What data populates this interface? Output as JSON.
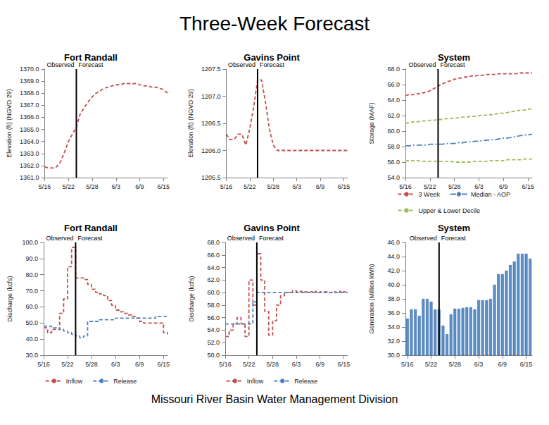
{
  "title": "Three-Week Forecast",
  "footer": "Missouri River Basin Water Management Division",
  "chart_data": [
    {
      "type": "line",
      "title": "Fort Randall",
      "ylabel": "Elevation (ft) (NGVD 29)",
      "categories": [
        "5/16",
        null,
        null,
        null,
        null,
        null,
        "5/22",
        null,
        null,
        null,
        null,
        null,
        "5/28",
        null,
        null,
        null,
        null,
        null,
        "6/3",
        null,
        null,
        null,
        null,
        null,
        "6/9",
        null,
        null,
        null,
        null,
        null,
        "6/15",
        null
      ],
      "values": [
        1361.9,
        1361.8,
        1361.8,
        1361.9,
        1362.3,
        1363.1,
        1364.0,
        1364.6,
        1365.2,
        1366.3,
        1366.8,
        1367.3,
        1367.7,
        1368.0,
        1368.2,
        1368.4,
        1368.5,
        1368.6,
        1368.7,
        1368.7,
        1368.8,
        1368.8,
        1368.8,
        1368.8,
        1368.7,
        1368.6,
        1368.6,
        1368.5,
        1368.5,
        1368.4,
        1368.3,
        1368.0
      ],
      "color": "#c0504d",
      "line_style": "dashed",
      "ylim": [
        1361,
        1370
      ],
      "yticks": [
        {
          "value": 1361,
          "label": "1361.0"
        },
        {
          "value": 1362,
          "label": "1362.0"
        },
        {
          "value": 1363,
          "label": "1363.0"
        },
        {
          "value": 1364,
          "label": "1364.0"
        },
        {
          "value": 1365,
          "label": "1365.0"
        },
        {
          "value": 1366,
          "label": "1366.0"
        },
        {
          "value": 1367,
          "label": "1367.0"
        },
        {
          "value": 1368,
          "label": "1368.0"
        },
        {
          "value": 1369,
          "label": "1369.0"
        },
        {
          "value": 1370,
          "label": "1370.0"
        }
      ],
      "annotations": [
        {
          "text": "Observed",
          "at": 8
        },
        {
          "text": "Forecast",
          "at": 8
        }
      ],
      "grid": false
    },
    {
      "type": "line",
      "title": "Gavins Point",
      "ylabel": "Elevation (ft) (NGVD 29)",
      "categories": [
        "5/16",
        null,
        null,
        null,
        null,
        null,
        "5/22",
        null,
        null,
        null,
        null,
        null,
        "5/28",
        null,
        null,
        null,
        null,
        null,
        "6/3",
        null,
        null,
        null,
        null,
        null,
        "6/9",
        null,
        null,
        null,
        null,
        null,
        "6/15",
        null
      ],
      "values": [
        1206.3,
        1206.2,
        1206.2,
        1206.3,
        1206.3,
        1206.1,
        1206.4,
        1206.8,
        1207.3,
        1207.3,
        1206.9,
        1206.4,
        1206.1,
        1206.0,
        1206.0,
        1206.0,
        1206.0,
        1206.0,
        1206.0,
        1206.0,
        1206.0,
        1206.0,
        1206.0,
        1206.0,
        1206.0,
        1206.0,
        1206.0,
        1206.0,
        1206.0,
        1206.0,
        1206.0,
        1206.0
      ],
      "color": "#c0504d",
      "line_style": "dashed",
      "ylim": [
        1205.5,
        1207.5
      ],
      "yticks": [
        {
          "value": 1205.5,
          "label": "1205.5"
        },
        {
          "value": 1206,
          "label": "1206.0"
        },
        {
          "value": 1206.5,
          "label": "1206.5"
        },
        {
          "value": 1207,
          "label": "1207.0"
        },
        {
          "value": 1207.5,
          "label": "1207.5"
        }
      ],
      "annotations": [
        {
          "text": "Observed",
          "at": 8
        },
        {
          "text": "Forecast",
          "at": 8
        }
      ],
      "grid": false
    },
    {
      "type": "line",
      "title": "System",
      "ylabel": "Storage (MAF)",
      "categories": [
        "5/16",
        null,
        null,
        null,
        null,
        null,
        "5/22",
        null,
        null,
        null,
        null,
        null,
        "5/28",
        null,
        null,
        null,
        null,
        null,
        "6/3",
        null,
        null,
        null,
        null,
        null,
        "6/9",
        null,
        null,
        null,
        null,
        null,
        "6/15",
        null
      ],
      "series": [
        {
          "name": "3 Week",
          "color": "#c0504d",
          "line_style": "dashed",
          "values": [
            64.6,
            64.7,
            64.7,
            64.8,
            64.9,
            65.0,
            65.2,
            65.5,
            65.8,
            66.1,
            66.3,
            66.5,
            66.7,
            66.8,
            66.9,
            67.0,
            67.1,
            67.1,
            67.2,
            67.2,
            67.3,
            67.3,
            67.3,
            67.4,
            67.4,
            67.4,
            67.4,
            67.4,
            67.5,
            67.5,
            67.5,
            67.5
          ]
        },
        {
          "name": "Median - AOP",
          "color": "#4f81bd",
          "line_style": "dashdot",
          "values": [
            58.1,
            58.1,
            58.2,
            58.2,
            58.2,
            58.2,
            58.3,
            58.3,
            58.3,
            58.3,
            58.4,
            58.4,
            58.4,
            58.5,
            58.5,
            58.6,
            58.6,
            58.7,
            58.7,
            58.8,
            58.8,
            58.9,
            58.9,
            59.0,
            59.1,
            59.1,
            59.2,
            59.3,
            59.4,
            59.5,
            59.5,
            59.6
          ]
        },
        {
          "name": "Upper & Lower Decile",
          "color": "#9bbb59",
          "line_style": "dashed",
          "values": [
            61.0,
            61.1,
            61.2,
            61.2,
            61.3,
            61.3,
            61.4,
            61.4,
            61.5,
            61.5,
            61.6,
            61.6,
            61.7,
            61.7,
            61.8,
            61.8,
            61.9,
            61.9,
            62.0,
            62.0,
            62.1,
            62.1,
            62.2,
            62.3,
            62.3,
            62.4,
            62.5,
            62.6,
            62.7,
            62.7,
            62.8,
            62.9
          ]
        },
        {
          "name": "Upper & Lower Decile",
          "color": "#9bbb59",
          "line_style": "dashed",
          "values": [
            56.2,
            56.2,
            56.2,
            56.2,
            56.1,
            56.1,
            56.1,
            56.1,
            56.1,
            56.1,
            56.1,
            56.1,
            56.0,
            56.0,
            56.0,
            56.0,
            56.0,
            56.1,
            56.1,
            56.1,
            56.1,
            56.2,
            56.2,
            56.2,
            56.2,
            56.3,
            56.3,
            56.3,
            56.3,
            56.4,
            56.4,
            56.4
          ]
        }
      ],
      "ylim": [
        54,
        68
      ],
      "yticks": [
        {
          "value": 54,
          "label": "54.0"
        },
        {
          "value": 56,
          "label": "56.0"
        },
        {
          "value": 58,
          "label": "58.0"
        },
        {
          "value": 60,
          "label": "60.0"
        },
        {
          "value": 62,
          "label": "62.0"
        },
        {
          "value": 64,
          "label": "64.0"
        },
        {
          "value": 66,
          "label": "66.0"
        },
        {
          "value": 68,
          "label": "68.0"
        }
      ],
      "annotations": [
        {
          "text": "Observed",
          "at": 8
        },
        {
          "text": "Forecast",
          "at": 8
        }
      ],
      "legend": "bottom",
      "grid": false
    },
    {
      "type": "line",
      "title": "Fort Randall",
      "ylabel": "Discharge (kcfs)",
      "categories": [
        "5/16",
        null,
        null,
        null,
        null,
        null,
        "5/22",
        null,
        null,
        null,
        null,
        null,
        "5/28",
        null,
        null,
        null,
        null,
        null,
        "6/3",
        null,
        null,
        null,
        null,
        null,
        "6/9",
        null,
        null,
        null,
        null,
        null,
        "6/15",
        null
      ],
      "series": [
        {
          "name": "Inflow",
          "color": "#c0504d",
          "line_style": "dashed",
          "type": "step",
          "values": [
            47,
            44,
            46,
            46,
            56,
            65,
            85,
            97,
            78,
            78,
            77,
            74,
            71,
            69,
            68,
            67,
            64,
            61,
            58,
            57,
            56,
            55,
            54,
            53,
            51,
            50,
            50,
            50,
            50,
            50,
            44,
            43
          ]
        },
        {
          "name": "Release",
          "color": "#4f81bd",
          "line_style": "dashed",
          "type": "step",
          "values": [
            48,
            48,
            47,
            47,
            46,
            45,
            44,
            43,
            42,
            41,
            42,
            51,
            51,
            51,
            52,
            52,
            52,
            52,
            53,
            53,
            53,
            53,
            53,
            53,
            53,
            53,
            53,
            53,
            54,
            54,
            54,
            54
          ]
        }
      ],
      "ylim": [
        30,
        100
      ],
      "yticks": [
        {
          "value": 30,
          "label": "30.0"
        },
        {
          "value": 40,
          "label": "40.0"
        },
        {
          "value": 50,
          "label": "50.0"
        },
        {
          "value": 60,
          "label": "60.0"
        },
        {
          "value": 70,
          "label": "70.0"
        },
        {
          "value": 80,
          "label": "80.0"
        },
        {
          "value": 90,
          "label": "90.0"
        },
        {
          "value": 100,
          "label": "100.0"
        }
      ],
      "annotations": [
        {
          "text": "Observed",
          "at": 8
        },
        {
          "text": "Forecast",
          "at": 8
        }
      ],
      "legend": "bottom",
      "grid": false
    },
    {
      "type": "line",
      "title": "Gavins Point",
      "ylabel": "Discharge (kcfs)",
      "categories": [
        "5/16",
        null,
        null,
        null,
        null,
        null,
        "5/22",
        null,
        null,
        null,
        null,
        null,
        "5/28",
        null,
        null,
        null,
        null,
        null,
        "6/3",
        null,
        null,
        null,
        null,
        null,
        "6/9",
        null,
        null,
        null,
        null,
        null,
        "6/15",
        null
      ],
      "series": [
        {
          "name": "Inflow",
          "color": "#c0504d",
          "line_style": "dashed",
          "type": "step",
          "values": [
            53,
            54,
            55,
            56,
            55,
            53,
            62,
            58,
            66.2,
            62,
            57,
            53.2,
            55.5,
            58,
            59.5,
            60,
            60,
            60.3,
            60.1,
            60.2,
            60.1,
            60.1,
            60.2,
            60,
            60.1,
            60.1,
            60,
            60.1,
            60,
            60.2,
            60.1,
            60
          ]
        },
        {
          "name": "Release",
          "color": "#4f81bd",
          "line_style": "dashed",
          "type": "step",
          "values": [
            55,
            55,
            55,
            55,
            55,
            55,
            55,
            58.5,
            60,
            60,
            60,
            60,
            60,
            60,
            60,
            60,
            60,
            60,
            60,
            60,
            60,
            60,
            60,
            60,
            60,
            60,
            60,
            60,
            60,
            60,
            60,
            60
          ]
        }
      ],
      "ylim": [
        50,
        68
      ],
      "yticks": [
        {
          "value": 50,
          "label": "50.0"
        },
        {
          "value": 52,
          "label": "52.0"
        },
        {
          "value": 54,
          "label": "54.0"
        },
        {
          "value": 56,
          "label": "56.0"
        },
        {
          "value": 58,
          "label": "58.0"
        },
        {
          "value": 60,
          "label": "60.0"
        },
        {
          "value": 62,
          "label": "62.0"
        },
        {
          "value": 64,
          "label": "64.0"
        },
        {
          "value": 66,
          "label": "66.0"
        },
        {
          "value": 68,
          "label": "68.0"
        }
      ],
      "annotations": [
        {
          "text": "Observed",
          "at": 8
        },
        {
          "text": "Forecast",
          "at": 8
        }
      ],
      "legend": "bottom",
      "grid": false
    },
    {
      "type": "bar",
      "title": "System",
      "ylabel": "Generation (Million kWh)",
      "categories": [
        "5/16",
        null,
        null,
        null,
        null,
        null,
        "5/22",
        null,
        null,
        null,
        null,
        null,
        "5/28",
        null,
        null,
        null,
        null,
        null,
        "6/3",
        null,
        null,
        null,
        null,
        null,
        "6/9",
        null,
        null,
        null,
        null,
        null,
        "6/15",
        null
      ],
      "values": [
        35.2,
        36.5,
        36.5,
        35.6,
        38.0,
        38.0,
        37.6,
        36.5,
        36.5,
        34.2,
        33.0,
        35.8,
        36.6,
        36.6,
        36.7,
        36.8,
        36.8,
        36.5,
        37.8,
        37.8,
        37.8,
        38.0,
        40.0,
        41.5,
        41.5,
        42.0,
        42.8,
        43.3,
        44.4,
        44.4,
        44.4,
        43.7
      ],
      "color": "#5b8fc7",
      "ylim": [
        30,
        46
      ],
      "yticks": [
        {
          "value": 30,
          "label": "30.0"
        },
        {
          "value": 32,
          "label": "32.0"
        },
        {
          "value": 34,
          "label": "34.0"
        },
        {
          "value": 36,
          "label": "36.0"
        },
        {
          "value": 38,
          "label": "38.0"
        },
        {
          "value": 40,
          "label": "40.0"
        },
        {
          "value": 42,
          "label": "42.0"
        },
        {
          "value": 44,
          "label": "44.0"
        },
        {
          "value": 46,
          "label": "46.0"
        }
      ],
      "annotations": [
        {
          "text": "Observed",
          "at": 8
        },
        {
          "text": "Forecast",
          "at": 8
        }
      ],
      "grid": false
    }
  ]
}
